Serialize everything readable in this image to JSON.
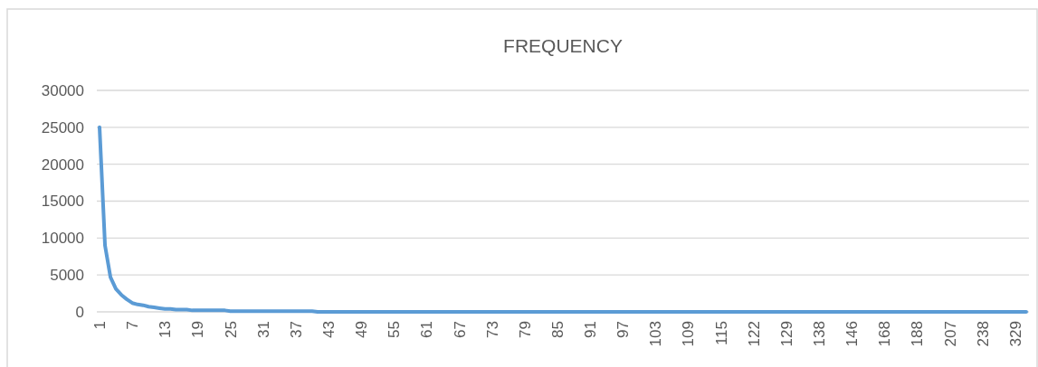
{
  "chart_data": {
    "type": "line",
    "title": "FREQUENCY",
    "categories": [
      "1",
      null,
      null,
      null,
      null,
      null,
      "7",
      null,
      null,
      null,
      null,
      null,
      "13",
      null,
      null,
      null,
      null,
      null,
      "19",
      null,
      null,
      null,
      null,
      null,
      "25",
      null,
      null,
      null,
      null,
      null,
      "31",
      null,
      null,
      null,
      null,
      null,
      "37",
      null,
      null,
      null,
      null,
      null,
      "43",
      null,
      null,
      null,
      null,
      null,
      "49",
      null,
      null,
      null,
      null,
      null,
      "55",
      null,
      null,
      null,
      null,
      null,
      "61",
      null,
      null,
      null,
      null,
      null,
      "67",
      null,
      null,
      null,
      null,
      null,
      "73",
      null,
      null,
      null,
      null,
      null,
      "79",
      null,
      null,
      null,
      null,
      null,
      "85",
      null,
      null,
      null,
      null,
      null,
      "91",
      null,
      null,
      null,
      null,
      null,
      "97",
      null,
      null,
      null,
      null,
      null,
      "103",
      null,
      null,
      null,
      null,
      null,
      "109",
      null,
      null,
      null,
      null,
      null,
      "115",
      null,
      null,
      null,
      null,
      null,
      "122",
      null,
      null,
      null,
      null,
      null,
      "129",
      null,
      null,
      null,
      null,
      null,
      "138",
      null,
      null,
      null,
      null,
      null,
      "146",
      null,
      null,
      null,
      null,
      null,
      "168",
      null,
      null,
      null,
      null,
      null,
      "188",
      null,
      null,
      null,
      null,
      null,
      "207",
      null,
      null,
      null,
      null,
      null,
      "238",
      null,
      null,
      null,
      null,
      null,
      "329",
      null,
      null
    ],
    "series": [
      {
        "color": "#5b9bd5",
        "values": [
          25000,
          9000,
          4700,
          3100,
          2300,
          1700,
          1200,
          1000,
          900,
          700,
          600,
          500,
          400,
          400,
          300,
          300,
          300,
          200,
          200,
          200,
          200,
          200,
          200,
          200,
          100,
          100,
          100,
          100,
          100,
          100,
          100,
          100,
          100,
          100,
          100,
          100,
          100,
          100,
          100,
          100,
          0,
          0,
          0,
          0,
          0,
          0,
          0,
          0,
          0,
          0,
          0,
          0,
          0,
          0,
          0,
          0,
          0,
          0,
          0,
          0,
          0,
          0,
          0,
          0,
          0,
          0,
          0,
          0,
          0,
          0,
          0,
          0,
          0,
          0,
          0,
          0,
          0,
          0,
          0,
          0,
          0,
          0,
          0,
          0,
          0,
          0,
          0,
          0,
          0,
          0,
          0,
          0,
          0,
          0,
          0,
          0,
          0,
          0,
          0,
          0,
          0,
          0,
          0,
          0,
          0,
          0,
          0,
          0,
          0,
          0,
          0,
          0,
          0,
          0,
          0,
          0,
          0,
          0,
          0,
          0,
          0,
          0,
          0,
          0,
          0,
          0,
          0,
          0,
          0,
          0,
          0,
          0,
          0,
          0,
          0,
          0,
          0,
          0,
          0,
          0,
          0,
          0,
          0,
          0,
          0,
          0,
          0,
          0,
          0,
          0,
          0,
          0,
          0,
          0,
          0,
          0,
          0,
          0,
          0,
          0,
          0,
          0,
          0,
          0,
          0,
          0,
          0,
          0,
          0,
          0,
          0
        ]
      }
    ],
    "ylim": [
      0,
      30000
    ],
    "yticks": [
      0,
      5000,
      10000,
      15000,
      20000,
      25000,
      30000
    ],
    "grid": "y",
    "line_style": "solid",
    "marker": "none"
  }
}
